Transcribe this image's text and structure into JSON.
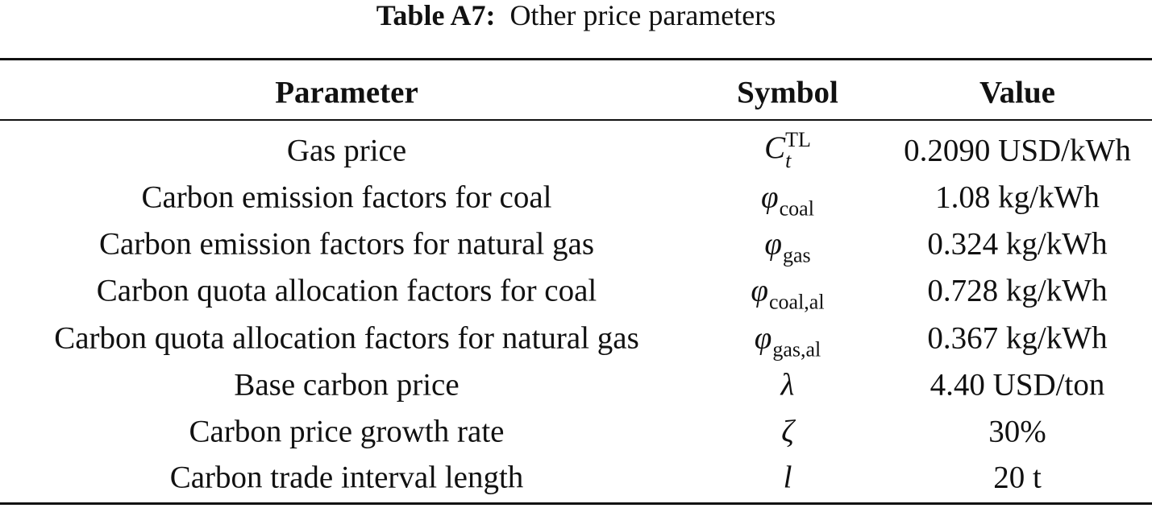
{
  "caption": {
    "label": "Table A7:",
    "text": "Other price parameters"
  },
  "table": {
    "header": [
      "Parameter",
      "Symbol",
      "Value"
    ],
    "rows": [
      {
        "parameter": "Gas price",
        "symbol": {
          "base": "C",
          "sub": "t",
          "sup": "TL"
        },
        "value": "0.2090 USD/kWh"
      },
      {
        "parameter": "Carbon emission factors for coal",
        "symbol": {
          "base": "φ",
          "sub": "coal"
        },
        "value": "1.08 kg/kWh"
      },
      {
        "parameter": "Carbon emission factors for natural gas",
        "symbol": {
          "base": "φ",
          "sub": "gas"
        },
        "value": "0.324 kg/kWh"
      },
      {
        "parameter": "Carbon quota allocation factors for coal",
        "symbol": {
          "base": "φ",
          "sub": "coal,al"
        },
        "value": "0.728 kg/kWh"
      },
      {
        "parameter": "Carbon quota allocation factors for natural gas",
        "symbol": {
          "base": "φ",
          "sub": "gas,al"
        },
        "value": "0.367 kg/kWh"
      },
      {
        "parameter": "Base carbon price",
        "symbol": {
          "base": "λ"
        },
        "value": "4.40 USD/ton"
      },
      {
        "parameter": "Carbon price growth rate",
        "symbol": {
          "base": "ζ"
        },
        "value": "30%"
      },
      {
        "parameter": "Carbon trade interval length",
        "symbol": {
          "base": "l"
        },
        "value": "20 t"
      }
    ]
  }
}
